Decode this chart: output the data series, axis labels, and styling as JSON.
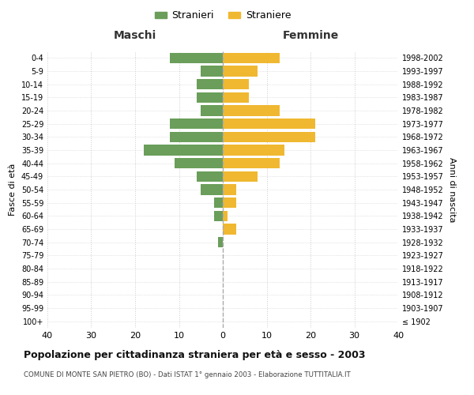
{
  "age_groups": [
    "100+",
    "95-99",
    "90-94",
    "85-89",
    "80-84",
    "75-79",
    "70-74",
    "65-69",
    "60-64",
    "55-59",
    "50-54",
    "45-49",
    "40-44",
    "35-39",
    "30-34",
    "25-29",
    "20-24",
    "15-19",
    "10-14",
    "5-9",
    "0-4"
  ],
  "birth_years": [
    "≤ 1902",
    "1903-1907",
    "1908-1912",
    "1913-1917",
    "1918-1922",
    "1923-1927",
    "1928-1932",
    "1933-1937",
    "1938-1942",
    "1943-1947",
    "1948-1952",
    "1953-1957",
    "1958-1962",
    "1963-1967",
    "1968-1972",
    "1973-1977",
    "1978-1982",
    "1983-1987",
    "1988-1992",
    "1993-1997",
    "1998-2002"
  ],
  "maschi": [
    0,
    0,
    0,
    0,
    0,
    0,
    1,
    0,
    2,
    2,
    5,
    6,
    11,
    18,
    12,
    12,
    5,
    6,
    6,
    5,
    12
  ],
  "femmine": [
    0,
    0,
    0,
    0,
    0,
    0,
    0,
    3,
    1,
    3,
    3,
    8,
    13,
    14,
    21,
    21,
    13,
    6,
    6,
    8,
    13
  ],
  "maschi_color": "#6a9e5a",
  "femmine_color": "#f0b830",
  "background_color": "#ffffff",
  "grid_color": "#cccccc",
  "title": "Popolazione per cittadinanza straniera per età e sesso - 2003",
  "subtitle": "COMUNE DI MONTE SAN PIETRO (BO) - Dati ISTAT 1° gennaio 2003 - Elaborazione TUTTITALIA.IT",
  "xlabel_left": "Maschi",
  "xlabel_right": "Femmine",
  "ylabel_left": "Fasce di età",
  "ylabel_right": "Anni di nascita",
  "legend_maschi": "Stranieri",
  "legend_femmine": "Straniere",
  "xlim": 40,
  "bar_height": 0.8
}
